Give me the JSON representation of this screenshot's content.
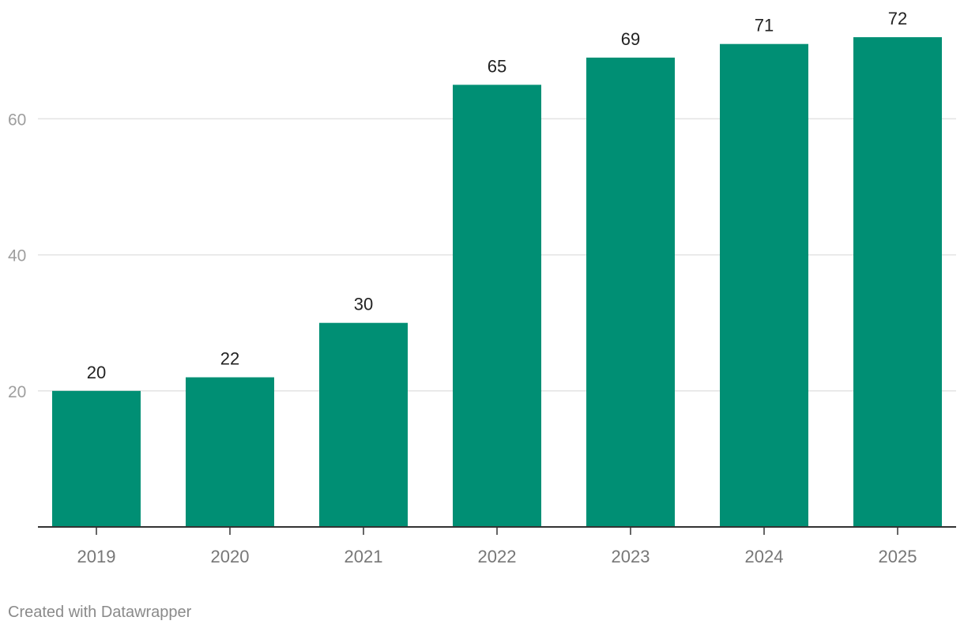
{
  "chart_data": {
    "type": "bar",
    "categories": [
      "2019",
      "2020",
      "2021",
      "2022",
      "2023",
      "2024",
      "2025"
    ],
    "values": [
      20,
      22,
      30,
      65,
      69,
      71,
      72
    ],
    "data_labels": [
      "20",
      "22",
      "30",
      "65",
      "69",
      "71",
      "72"
    ],
    "y_ticks": [
      20,
      40,
      60
    ],
    "y_tick_labels": [
      "20",
      "40",
      "60"
    ],
    "ylim": [
      0,
      72
    ],
    "grid": true,
    "bar_color": "#008f74",
    "title": "",
    "xlabel": "",
    "ylabel": ""
  },
  "footer": {
    "credit": "Created with Datawrapper"
  }
}
